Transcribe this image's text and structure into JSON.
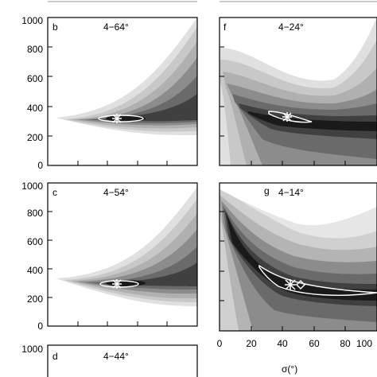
{
  "chart_data": [
    {
      "type": "heatmap",
      "panel_letter": "b",
      "annotation": "4−64°",
      "ylim": [
        0,
        1000
      ],
      "yticks": [
        "1000",
        "800",
        "600",
        "400",
        "200",
        "0"
      ],
      "xlim": [
        0,
        100
      ],
      "marker": {
        "x": 47,
        "y": 320
      },
      "contour_center": {
        "x": 47,
        "y": 320
      }
    },
    {
      "type": "heatmap",
      "panel_letter": "f",
      "annotation": "4−24°",
      "ylim": [
        0,
        1000
      ],
      "xlim": [
        0,
        100
      ],
      "marker": {
        "x": 48,
        "y": 345
      },
      "contour_center": {
        "x": 48,
        "y": 345
      }
    },
    {
      "type": "heatmap",
      "panel_letter": "c",
      "annotation": "4−54°",
      "ylim": [
        0,
        1000
      ],
      "yticks": [
        "1000",
        "800",
        "600",
        "400",
        "200",
        "0"
      ],
      "xlim": [
        0,
        100
      ],
      "marker": {
        "x": 47,
        "y": 320
      },
      "contour_center": {
        "x": 47,
        "y": 320
      }
    },
    {
      "type": "heatmap",
      "panel_letter": "g",
      "annotation": "4−14°",
      "ylim": [
        0,
        1000
      ],
      "xlim": [
        0,
        100
      ],
      "xticks": [
        "0",
        "20",
        "40",
        "60",
        "80",
        "100"
      ],
      "marker": {
        "x": 47,
        "y": 320
      },
      "contour_center": {
        "x": 47,
        "y": 320
      }
    },
    {
      "type": "heatmap",
      "panel_letter": "d",
      "annotation": "4−44°",
      "ylim": [
        0,
        1000
      ],
      "yticks": [
        "1000"
      ],
      "xlim": [
        0,
        100
      ]
    }
  ],
  "xlabel": "σ(°)"
}
